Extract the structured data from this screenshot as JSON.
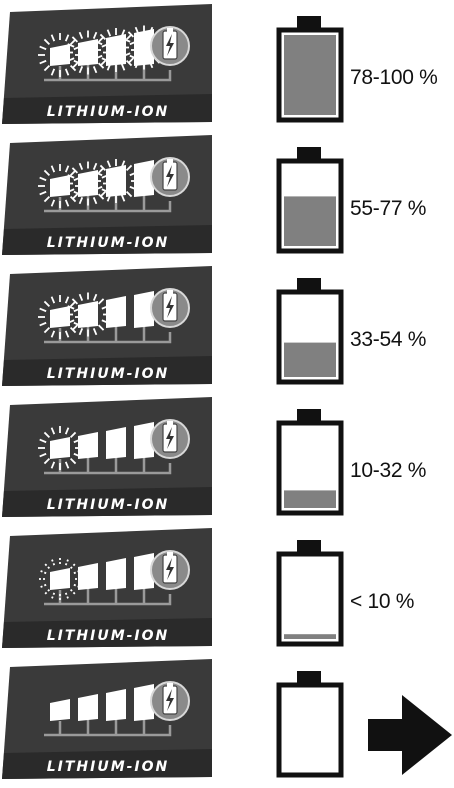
{
  "panel_label": "LITHIUM-ION",
  "rows": [
    {
      "range_label": "78-100 %",
      "lit_segments": 4,
      "segment_state": "steady",
      "fill_fraction": 1.0
    },
    {
      "range_label": "55-77 %",
      "lit_segments": 3,
      "segment_state": "steady",
      "fill_fraction": 0.62
    },
    {
      "range_label": "33-54 %",
      "lit_segments": 2,
      "segment_state": "steady",
      "fill_fraction": 0.43
    },
    {
      "range_label": "10-32 %",
      "lit_segments": 1,
      "segment_state": "steady",
      "fill_fraction": 0.22
    },
    {
      "range_label": "< 10 %",
      "lit_segments": 1,
      "segment_state": "blinking",
      "fill_fraction": 0.06
    },
    {
      "range_label": "",
      "lit_segments": 0,
      "segment_state": "off",
      "fill_fraction": 0.0,
      "show_arrow": true
    }
  ],
  "icons": {
    "battery": "battery-icon",
    "lightning": "lightning-icon",
    "arrow": "arrow-right-icon"
  },
  "colors": {
    "panel": "#3a3a3a",
    "panel_band": "#2a2a2a",
    "segment": "#ffffff",
    "wire": "#9a9a9a",
    "battery_fill": "#808080",
    "battery_outline": "#111111",
    "arrow": "#111111"
  }
}
